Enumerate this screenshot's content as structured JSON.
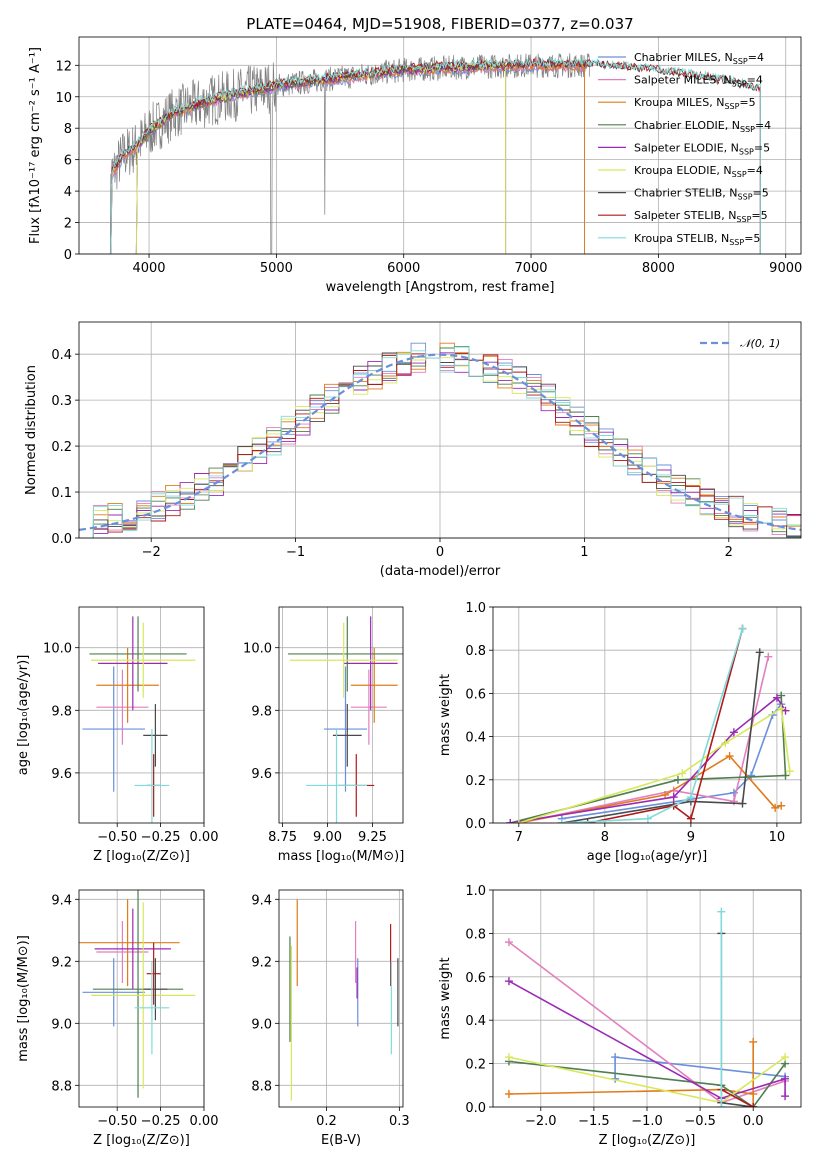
{
  "figure": {
    "title": "PLATE=0464, MJD=51908, FIBERID=0377, z=0.037"
  },
  "colors": {
    "Chabrier MILES": "#6a8fdc",
    "Salpeter MILES": "#e37fbf",
    "Kroupa MILES": "#e07b1a",
    "Chabrier ELODIE": "#4f7f4f",
    "Salpeter ELODIE": "#9b2bb5",
    "Kroupa ELODIE": "#d8e85c",
    "Chabrier STELIB": "#4a4a4a",
    "Salpeter STELIB": "#b01a1a",
    "Kroupa STELIB": "#7fdada",
    "data": "#808080"
  },
  "chart_data": [
    {
      "id": "spectrum",
      "type": "line",
      "title": "PLATE=0464, MJD=51908, FIBERID=0377, z=0.037",
      "xlabel": "wavelength [Angstrom, rest frame]",
      "ylabel": "Flux [fλ10⁻¹⁷ erg cm⁻² s⁻¹ A⁻¹]",
      "xlim": [
        3450,
        9120
      ],
      "ylim": [
        0,
        13.8
      ],
      "xticks": [
        4000,
        5000,
        6000,
        7000,
        8000,
        9000
      ],
      "yticks": [
        0,
        2,
        4,
        6,
        8,
        10,
        12
      ],
      "legend_position": "top-right",
      "legend": [
        {
          "name": "Chabrier MILES",
          "N": 4
        },
        {
          "name": "Salpeter MILES",
          "N": 4
        },
        {
          "name": "Kroupa MILES",
          "N": 5
        },
        {
          "name": "Chabrier ELODIE",
          "N": 4
        },
        {
          "name": "Salpeter ELODIE",
          "N": 5
        },
        {
          "name": "Kroupa ELODIE",
          "N": 4
        },
        {
          "name": "Chabrier STELIB",
          "N": 5
        },
        {
          "name": "Salpeter STELIB",
          "N": 5
        },
        {
          "name": "Kroupa STELIB",
          "N": 5
        }
      ],
      "model_continuum": {
        "x": [
          3700,
          3800,
          3900,
          4000,
          4200,
          4500,
          5000,
          5500,
          6000,
          6500,
          7000,
          7500,
          8000,
          8500,
          8800
        ],
        "y": [
          5.0,
          6.3,
          6.8,
          7.8,
          9.0,
          9.8,
          10.7,
          11.2,
          11.7,
          11.9,
          12.0,
          12.0,
          11.6,
          11.0,
          10.4
        ]
      },
      "model_ranges": {
        "MILES": [
          3700,
          7420
        ],
        "ELODIE": [
          3900,
          6800
        ],
        "STELIB": [
          3700,
          8800
        ]
      },
      "data_range": [
        3680,
        7460
      ]
    },
    {
      "id": "residuals",
      "type": "histogram",
      "xlabel": "(data-model)/error",
      "ylabel": "Normed distribution",
      "xlim": [
        -2.5,
        2.5
      ],
      "ylim": [
        0,
        0.47
      ],
      "xticks": [
        -2,
        -1,
        0,
        1,
        2
      ],
      "yticks": [
        0.0,
        0.1,
        0.2,
        0.3,
        0.4
      ],
      "legend_position": "top-right",
      "reference_label": "𝒩(0, 1)",
      "bin_width": 0.1
    },
    {
      "id": "age-vs-Z",
      "type": "errorbar",
      "xlabel": "Z [log₁₀(Z/Z⊙)]",
      "ylabel": "age  [log₁₀(age/yr)]",
      "xlim": [
        -0.72,
        0.0
      ],
      "ylim": [
        9.44,
        10.13
      ],
      "xticks": [
        -0.5,
        -0.25,
        0.0
      ],
      "xticklabels": [
        "−0.50",
        "−0.25",
        "0.00"
      ],
      "yticks": [
        9.6,
        9.8,
        10.0
      ],
      "points": [
        {
          "series": "Chabrier MILES",
          "x": -0.52,
          "xerr": 0.18,
          "y": 9.74,
          "yerr": 0.2
        },
        {
          "series": "Salpeter MILES",
          "x": -0.47,
          "xerr": 0.15,
          "y": 9.81,
          "yerr": 0.12
        },
        {
          "series": "Kroupa MILES",
          "x": -0.44,
          "xerr": 0.18,
          "y": 9.88,
          "yerr": 0.12
        },
        {
          "series": "Chabrier ELODIE",
          "x": -0.38,
          "xerr": 0.28,
          "y": 9.98,
          "yerr": 0.12
        },
        {
          "series": "Salpeter ELODIE",
          "x": -0.41,
          "xerr": 0.2,
          "y": 9.95,
          "yerr": 0.15
        },
        {
          "series": "Kroupa ELODIE",
          "x": -0.35,
          "xerr": 0.3,
          "y": 9.96,
          "yerr": 0.12
        },
        {
          "series": "Chabrier STELIB",
          "x": -0.28,
          "xerr": 0.07,
          "y": 9.72,
          "yerr": 0.1
        },
        {
          "series": "Salpeter STELIB",
          "x": -0.29,
          "xerr": 0.04,
          "y": 9.56,
          "yerr": 0.1
        },
        {
          "series": "Kroupa STELIB",
          "x": -0.3,
          "xerr": 0.1,
          "y": 9.56,
          "yerr": 0.18
        }
      ]
    },
    {
      "id": "age-vs-mass",
      "type": "errorbar",
      "xlabel": "mass [log₁₀(M/M⊙)]",
      "ylabel": "",
      "xlim": [
        8.73,
        9.42
      ],
      "ylim": [
        9.44,
        10.13
      ],
      "xticks": [
        8.75,
        9.0,
        9.25
      ],
      "yticks": [
        9.6,
        9.8,
        10.0
      ],
      "points": [
        {
          "series": "Chabrier MILES",
          "x": 9.1,
          "xerr": 0.12,
          "y": 9.74,
          "yerr": 0.2
        },
        {
          "series": "Salpeter MILES",
          "x": 9.23,
          "xerr": 0.1,
          "y": 9.81,
          "yerr": 0.12
        },
        {
          "series": "Kroupa MILES",
          "x": 9.26,
          "xerr": 0.13,
          "y": 9.88,
          "yerr": 0.12
        },
        {
          "series": "Chabrier ELODIE",
          "x": 9.11,
          "xerr": 0.33,
          "y": 9.98,
          "yerr": 0.12
        },
        {
          "series": "Salpeter ELODIE",
          "x": 9.24,
          "xerr": 0.15,
          "y": 9.95,
          "yerr": 0.15
        },
        {
          "series": "Kroupa ELODIE",
          "x": 9.09,
          "xerr": 0.3,
          "y": 9.96,
          "yerr": 0.12
        },
        {
          "series": "Chabrier STELIB",
          "x": 9.11,
          "xerr": 0.08,
          "y": 9.72,
          "yerr": 0.1
        },
        {
          "series": "Salpeter STELIB",
          "x": 9.16,
          "xerr": 0.1,
          "y": 9.56,
          "yerr": 0.1
        },
        {
          "series": "Kroupa STELIB",
          "x": 9.05,
          "xerr": 0.17,
          "y": 9.56,
          "yerr": 0.18
        }
      ]
    },
    {
      "id": "massweight-vs-age",
      "type": "line",
      "xlabel": "age  [log₁₀(age/yr)]",
      "ylabel": "mass weight",
      "xlim": [
        6.7,
        10.28
      ],
      "ylim": [
        0,
        1.0
      ],
      "xticks": [
        7,
        8,
        9,
        10
      ],
      "yticks": [
        0.0,
        0.2,
        0.4,
        0.6,
        0.8,
        1.0
      ],
      "series": [
        {
          "name": "Chabrier MILES",
          "x": [
            7.5,
            9.5,
            9.7,
            9.95,
            10.05
          ],
          "y": [
            0.02,
            0.14,
            0.22,
            0.5,
            0.55
          ]
        },
        {
          "name": "Salpeter MILES",
          "x": [
            7.0,
            8.8,
            9.5,
            9.9
          ],
          "y": [
            0.0,
            0.15,
            0.1,
            0.77
          ]
        },
        {
          "name": "Kroupa MILES",
          "x": [
            7.0,
            8.7,
            9.45,
            9.98,
            10.05
          ],
          "y": [
            0.0,
            0.13,
            0.31,
            0.07,
            0.08
          ]
        },
        {
          "name": "Chabrier ELODIE",
          "x": [
            6.9,
            8.85,
            10.1,
            10.05
          ],
          "y": [
            0.0,
            0.2,
            0.22,
            0.59
          ]
        },
        {
          "name": "Salpeter ELODIE",
          "x": [
            6.9,
            8.8,
            9.5,
            10.0,
            10.1
          ],
          "y": [
            0.0,
            0.12,
            0.42,
            0.58,
            0.52
          ]
        },
        {
          "name": "Kroupa ELODIE",
          "x": [
            7.0,
            8.9,
            9.4,
            10.05,
            10.15
          ],
          "y": [
            0.0,
            0.23,
            0.37,
            0.53,
            0.24
          ]
        },
        {
          "name": "Chabrier STELIB",
          "x": [
            7.5,
            9.0,
            9.6,
            9.8
          ],
          "y": [
            0.0,
            0.1,
            0.09,
            0.79
          ]
        },
        {
          "name": "Salpeter STELIB",
          "x": [
            7.8,
            8.8,
            9.0,
            9.6
          ],
          "y": [
            0.0,
            0.08,
            0.02,
            0.9
          ]
        },
        {
          "name": "Kroupa STELIB",
          "x": [
            7.5,
            8.5,
            9.0,
            9.6
          ],
          "y": [
            0.0,
            0.02,
            0.12,
            0.9
          ]
        }
      ]
    },
    {
      "id": "mass-vs-Z",
      "type": "errorbar",
      "xlabel": "Z [log₁₀(Z/Z⊙)]",
      "ylabel": "mass [log₁₀(M/M⊙)]",
      "xlim": [
        -0.72,
        0.0
      ],
      "ylim": [
        8.73,
        9.43
      ],
      "xticks": [
        -0.5,
        -0.25,
        0.0
      ],
      "xticklabels": [
        "−0.50",
        "−0.25",
        "0.00"
      ],
      "yticks": [
        8.8,
        9.0,
        9.2,
        9.4
      ],
      "points": [
        {
          "series": "Chabrier MILES",
          "x": -0.52,
          "xerr": 0.18,
          "y": 9.1,
          "yerr": 0.11
        },
        {
          "series": "Salpeter MILES",
          "x": -0.47,
          "xerr": 0.15,
          "y": 9.23,
          "yerr": 0.1
        },
        {
          "series": "Kroupa MILES",
          "x": -0.44,
          "xerr": 0.3,
          "y": 9.26,
          "yerr": 0.14
        },
        {
          "series": "Chabrier ELODIE",
          "x": -0.38,
          "xerr": 0.26,
          "y": 9.11,
          "yerr": 0.35
        },
        {
          "series": "Salpeter ELODIE",
          "x": -0.41,
          "xerr": 0.22,
          "y": 9.24,
          "yerr": 0.13
        },
        {
          "series": "Kroupa ELODIE",
          "x": -0.35,
          "xerr": 0.3,
          "y": 9.09,
          "yerr": 0.3
        },
        {
          "series": "Chabrier STELIB",
          "x": -0.28,
          "xerr": 0.07,
          "y": 9.11,
          "yerr": 0.1
        },
        {
          "series": "Salpeter STELIB",
          "x": -0.29,
          "xerr": 0.04,
          "y": 9.16,
          "yerr": 0.1
        },
        {
          "series": "Kroupa STELIB",
          "x": -0.3,
          "xerr": 0.1,
          "y": 9.05,
          "yerr": 0.15
        }
      ]
    },
    {
      "id": "mass-vs-ebv",
      "type": "errorbar",
      "xlabel": "E(B-V)",
      "ylabel": "",
      "xlim": [
        0.135,
        0.305
      ],
      "ylim": [
        8.73,
        9.43
      ],
      "xticks": [
        0.2,
        0.3
      ],
      "yticks": [
        8.8,
        9.0,
        9.2,
        9.4
      ],
      "points": [
        {
          "series": "Chabrier MILES",
          "x": 0.243,
          "y": 9.1,
          "yerr": 0.11
        },
        {
          "series": "Salpeter MILES",
          "x": 0.24,
          "y": 9.23,
          "yerr": 0.1
        },
        {
          "series": "Kroupa MILES",
          "x": 0.16,
          "y": 9.26,
          "yerr": 0.14
        },
        {
          "series": "Chabrier ELODIE",
          "x": 0.15,
          "y": 9.11,
          "yerr": 0.17
        },
        {
          "series": "Salpeter ELODIE",
          "x": 0.242,
          "y": 9.13,
          "yerr": 0.05
        },
        {
          "series": "Kroupa ELODIE",
          "x": 0.152,
          "y": 9.0,
          "yerr": 0.25
        },
        {
          "series": "Chabrier STELIB",
          "x": 0.298,
          "y": 9.1,
          "yerr": 0.11
        },
        {
          "series": "Salpeter STELIB",
          "x": 0.288,
          "y": 9.22,
          "yerr": 0.1
        },
        {
          "series": "Kroupa STELIB",
          "x": 0.289,
          "y": 9.05,
          "yerr": 0.15
        }
      ]
    },
    {
      "id": "massweight-vs-Z",
      "type": "line",
      "xlabel": "Z [log₁₀(Z/Z⊙)]",
      "ylabel": "mass weight",
      "xlim": [
        -2.45,
        0.45
      ],
      "ylim": [
        0,
        1.0
      ],
      "xticks": [
        -2.0,
        -1.5,
        -1.0,
        -0.5,
        0.0
      ],
      "xticklabels": [
        "−2.0",
        "−1.5",
        "−1.0",
        "−0.5",
        "0.0"
      ],
      "yticks": [
        0.0,
        0.2,
        0.4,
        0.6,
        0.8,
        1.0
      ],
      "series": [
        {
          "name": "Chabrier MILES",
          "x": [
            -1.3,
            -1.3,
            0.3
          ],
          "y": [
            0.13,
            0.23,
            0.14
          ]
        },
        {
          "name": "Salpeter MILES",
          "x": [
            -2.3,
            -0.3,
            0.3
          ],
          "y": [
            0.76,
            0.02,
            0.12
          ]
        },
        {
          "name": "Kroupa MILES",
          "x": [
            -2.3,
            -0.3,
            0.0,
            0.0,
            0.0
          ],
          "y": [
            0.06,
            0.08,
            0.06,
            0.3,
            0.0
          ]
        },
        {
          "name": "Chabrier ELODIE",
          "x": [
            -2.3,
            -0.3,
            0.0,
            0.3
          ],
          "y": [
            0.21,
            0.1,
            0.0,
            0.2
          ]
        },
        {
          "name": "Salpeter ELODIE",
          "x": [
            -2.3,
            -0.3,
            0.3,
            0.3
          ],
          "y": [
            0.58,
            0.04,
            0.13,
            0.05
          ]
        },
        {
          "name": "Kroupa ELODIE",
          "x": [
            -2.3,
            -0.3,
            0.3
          ],
          "y": [
            0.23,
            0.02,
            0.23
          ]
        },
        {
          "name": "Chabrier STELIB",
          "x": [
            -0.3,
            -0.3,
            0.0
          ],
          "y": [
            0.8,
            0.02,
            0.0
          ]
        },
        {
          "name": "Salpeter STELIB",
          "x": [
            -0.3,
            0.0
          ],
          "y": [
            0.08,
            0.0
          ]
        },
        {
          "name": "Kroupa STELIB",
          "x": [
            -0.3,
            -0.3
          ],
          "y": [
            0.9,
            0.0
          ]
        }
      ]
    }
  ]
}
